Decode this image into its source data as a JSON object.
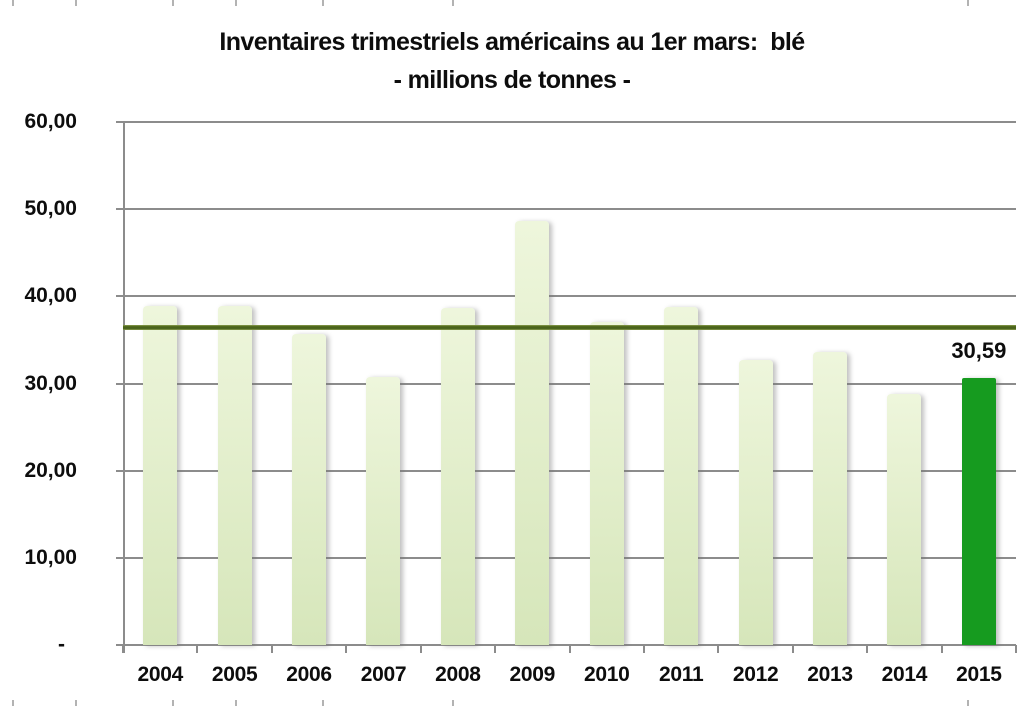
{
  "colors": {
    "bar_light_top": "#eef6dc",
    "bar_light_bottom": "#d6e6ba",
    "bar_highlight": "#169b1f",
    "reference_line": "#4d661a",
    "gridline": "#8c8c8c",
    "text": "#0d0d0d"
  },
  "chart_data": {
    "type": "bar",
    "title": "Inventaires trimestriels américains au 1er mars:  blé",
    "subtitle": "- millions de tonnes -",
    "categories": [
      "2004",
      "2005",
      "2006",
      "2007",
      "2008",
      "2009",
      "2010",
      "2011",
      "2012",
      "2013",
      "2014",
      "2015"
    ],
    "values": [
      38.9,
      38.9,
      35.7,
      30.8,
      38.7,
      48.6,
      37.0,
      38.8,
      32.7,
      33.6,
      28.8,
      30.59
    ],
    "highlight_category": "2015",
    "highlight_value_label": "30,59",
    "reference_line_value": 36.5,
    "ylim": [
      0,
      60
    ],
    "yticks": [
      {
        "value": 60,
        "label": "60,00"
      },
      {
        "value": 50,
        "label": "50,00"
      },
      {
        "value": 40,
        "label": "40,00"
      },
      {
        "value": 30,
        "label": "30,00"
      },
      {
        "value": 20,
        "label": "20,00"
      },
      {
        "value": 10,
        "label": "10,00"
      },
      {
        "value": 0,
        "label": "-"
      }
    ],
    "grid": "horizontal",
    "legend": "none",
    "xlabel": "",
    "ylabel": ""
  },
  "edge_ticks_x": [
    12,
    75,
    172,
    235,
    322,
    452,
    967
  ]
}
